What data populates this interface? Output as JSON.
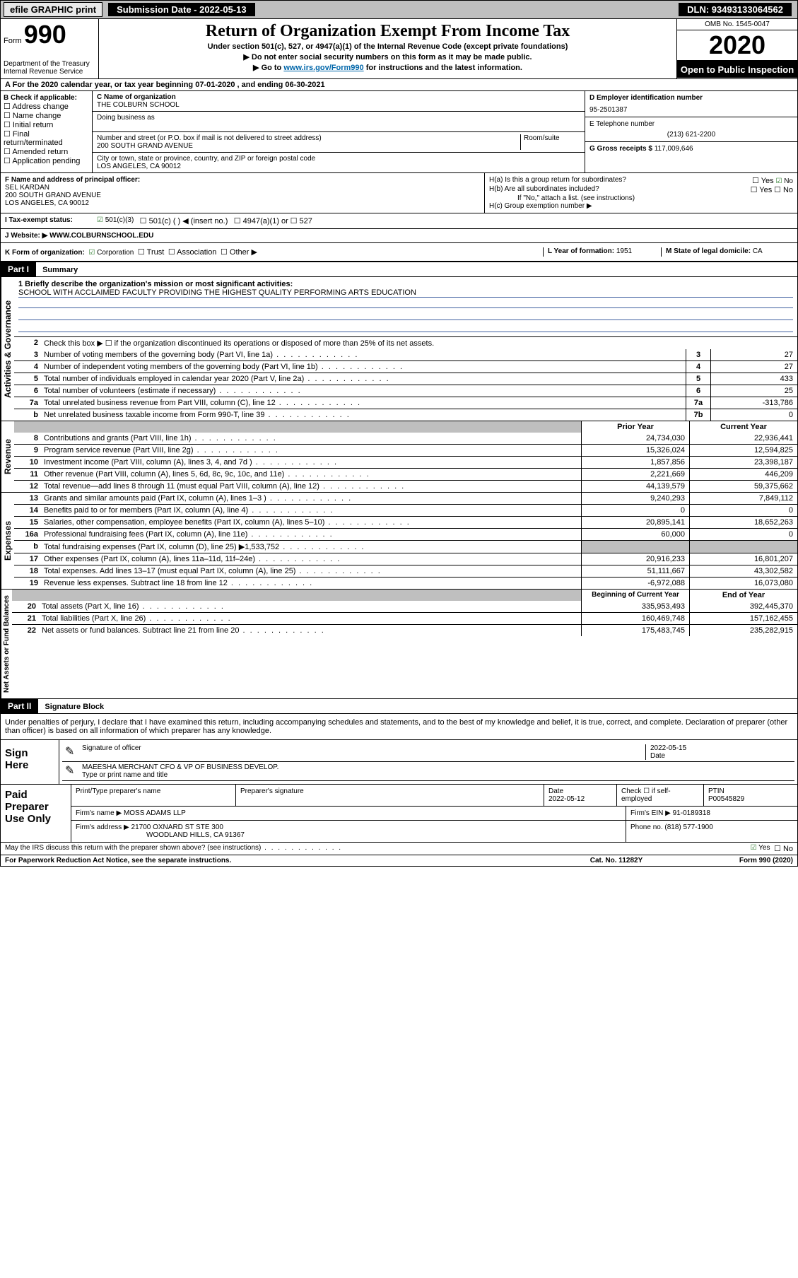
{
  "topbar": {
    "efile": "efile GRAPHIC print",
    "submission_label": "Submission Date - 2022-05-13",
    "dln": "DLN: 93493133064562"
  },
  "header": {
    "form_label": "Form",
    "form_number": "990",
    "dept": "Department of the Treasury",
    "irs": "Internal Revenue Service",
    "title": "Return of Organization Exempt From Income Tax",
    "subtitle": "Under section 501(c), 527, or 4947(a)(1) of the Internal Revenue Code (except private foundations)",
    "note1": "Do not enter social security numbers on this form as it may be made public.",
    "note2_prefix": "Go to ",
    "note2_link": "www.irs.gov/Form990",
    "note2_suffix": " for instructions and the latest information.",
    "omb": "OMB No. 1545-0047",
    "year": "2020",
    "open": "Open to Public Inspection"
  },
  "section_a": "For the 2020 calendar year, or tax year beginning 07-01-2020    , and ending 06-30-2021",
  "col_b": {
    "label": "B Check if applicable:",
    "items": [
      "Address change",
      "Name change",
      "Initial return",
      "Final return/terminated",
      "Amended return",
      "Application pending"
    ]
  },
  "col_c": {
    "name_label": "C Name of organization",
    "name": "THE COLBURN SCHOOL",
    "dba_label": "Doing business as",
    "addr_label": "Number and street (or P.O. box if mail is not delivered to street address)",
    "room_label": "Room/suite",
    "addr": "200 SOUTH GRAND AVENUE",
    "city_label": "City or town, state or province, country, and ZIP or foreign postal code",
    "city": "LOS ANGELES, CA  90012"
  },
  "col_d": {
    "ein_label": "D Employer identification number",
    "ein": "95-2501387",
    "phone_label": "E Telephone number",
    "phone": "(213) 621-2200",
    "gross_label": "G Gross receipts $",
    "gross": "117,009,646"
  },
  "row_f": {
    "label": "F  Name and address of principal officer:",
    "name": "SEL KARDAN",
    "addr1": "200 SOUTH GRAND AVENUE",
    "addr2": "LOS ANGELES, CA  90012",
    "ha_label": "H(a)  Is this a group return for subordinates?",
    "hb_label": "H(b)  Are all subordinates included?",
    "hb_note": "If \"No,\" attach a list. (see instructions)",
    "hc_label": "H(c)  Group exemption number ▶",
    "yes": "Yes",
    "no": "No"
  },
  "row_i": {
    "label": "I  Tax-exempt status:",
    "opt1": "501(c)(3)",
    "opt2": "501(c) (   ) ◀ (insert no.)",
    "opt3": "4947(a)(1) or",
    "opt4": "527"
  },
  "row_j": {
    "label": "J  Website: ▶",
    "value": "WWW.COLBURNSCHOOL.EDU"
  },
  "row_k": {
    "label": "K Form of organization:",
    "opts": [
      "Corporation",
      "Trust",
      "Association",
      "Other ▶"
    ],
    "l_label": "L Year of formation:",
    "l_val": "1951",
    "m_label": "M State of legal domicile:",
    "m_val": "CA"
  },
  "part1": {
    "hdr": "Part I",
    "title": "Summary",
    "l1_label": "1  Briefly describe the organization's mission or most significant activities:",
    "l1_text": "SCHOOL WITH ACCLAIMED FACULTY PROVIDING THE HIGHEST QUALITY PERFORMING ARTS EDUCATION",
    "l2": "Check this box ▶ ☐  if the organization discontinued its operations or disposed of more than 25% of its net assets.",
    "sections": {
      "ag": "Activities & Governance",
      "rev": "Revenue",
      "exp": "Expenses",
      "na": "Net Assets or Fund Balances"
    },
    "lines_single": [
      {
        "n": "3",
        "t": "Number of voting members of the governing body (Part VI, line 1a)",
        "b": "3",
        "v": "27"
      },
      {
        "n": "4",
        "t": "Number of independent voting members of the governing body (Part VI, line 1b)",
        "b": "4",
        "v": "27"
      },
      {
        "n": "5",
        "t": "Total number of individuals employed in calendar year 2020 (Part V, line 2a)",
        "b": "5",
        "v": "433"
      },
      {
        "n": "6",
        "t": "Total number of volunteers (estimate if necessary)",
        "b": "6",
        "v": "25"
      },
      {
        "n": "7a",
        "t": "Total unrelated business revenue from Part VIII, column (C), line 12",
        "b": "7a",
        "v": "-313,786"
      },
      {
        "n": "b",
        "t": "Net unrelated business taxable income from Form 990-T, line 39",
        "b": "7b",
        "v": "0"
      }
    ],
    "col_hdr_prior": "Prior Year",
    "col_hdr_curr": "Current Year",
    "lines_rev": [
      {
        "n": "8",
        "t": "Contributions and grants (Part VIII, line 1h)",
        "p": "24,734,030",
        "c": "22,936,441"
      },
      {
        "n": "9",
        "t": "Program service revenue (Part VIII, line 2g)",
        "p": "15,326,024",
        "c": "12,594,825"
      },
      {
        "n": "10",
        "t": "Investment income (Part VIII, column (A), lines 3, 4, and 7d )",
        "p": "1,857,856",
        "c": "23,398,187"
      },
      {
        "n": "11",
        "t": "Other revenue (Part VIII, column (A), lines 5, 6d, 8c, 9c, 10c, and 11e)",
        "p": "2,221,669",
        "c": "446,209"
      },
      {
        "n": "12",
        "t": "Total revenue—add lines 8 through 11 (must equal Part VIII, column (A), line 12)",
        "p": "44,139,579",
        "c": "59,375,662"
      }
    ],
    "lines_exp": [
      {
        "n": "13",
        "t": "Grants and similar amounts paid (Part IX, column (A), lines 1–3 )",
        "p": "9,240,293",
        "c": "7,849,112"
      },
      {
        "n": "14",
        "t": "Benefits paid to or for members (Part IX, column (A), line 4)",
        "p": "0",
        "c": "0"
      },
      {
        "n": "15",
        "t": "Salaries, other compensation, employee benefits (Part IX, column (A), lines 5–10)",
        "p": "20,895,141",
        "c": "18,652,263"
      },
      {
        "n": "16a",
        "t": "Professional fundraising fees (Part IX, column (A), line 11e)",
        "p": "60,000",
        "c": "0"
      },
      {
        "n": "b",
        "t": "Total fundraising expenses (Part IX, column (D), line 25) ▶1,533,752",
        "p": "GRAY",
        "c": "GRAY"
      },
      {
        "n": "17",
        "t": "Other expenses (Part IX, column (A), lines 11a–11d, 11f–24e)",
        "p": "20,916,233",
        "c": "16,801,207"
      },
      {
        "n": "18",
        "t": "Total expenses. Add lines 13–17 (must equal Part IX, column (A), line 25)",
        "p": "51,111,667",
        "c": "43,302,582"
      },
      {
        "n": "19",
        "t": "Revenue less expenses. Subtract line 18 from line 12",
        "p": "-6,972,088",
        "c": "16,073,080"
      }
    ],
    "col_hdr_begin": "Beginning of Current Year",
    "col_hdr_end": "End of Year",
    "lines_na": [
      {
        "n": "20",
        "t": "Total assets (Part X, line 16)",
        "p": "335,953,493",
        "c": "392,445,370"
      },
      {
        "n": "21",
        "t": "Total liabilities (Part X, line 26)",
        "p": "160,469,748",
        "c": "157,162,455"
      },
      {
        "n": "22",
        "t": "Net assets or fund balances. Subtract line 21 from line 20",
        "p": "175,483,745",
        "c": "235,282,915"
      }
    ]
  },
  "part2": {
    "hdr": "Part II",
    "title": "Signature Block",
    "decl": "Under penalties of perjury, I declare that I have examined this return, including accompanying schedules and statements, and to the best of my knowledge and belief, it is true, correct, and complete. Declaration of preparer (other than officer) is based on all information of which preparer has any knowledge.",
    "sign_here": "Sign Here",
    "sig_officer": "Signature of officer",
    "date_label": "Date",
    "sig_date": "2022-05-15",
    "officer_name": "MAEESHA MERCHANT  CFO & VP OF BUSINESS DEVELOP.",
    "type_label": "Type or print name and title",
    "paid": "Paid Preparer Use Only",
    "prep_name_label": "Print/Type preparer's name",
    "prep_sig_label": "Preparer's signature",
    "prep_date_label": "Date",
    "prep_date": "2022-05-12",
    "self_emp": "Check ☐ if self-employed",
    "ptin_label": "PTIN",
    "ptin": "P00545829",
    "firm_name_label": "Firm's name    ▶",
    "firm_name": "MOSS ADAMS LLP",
    "firm_ein_label": "Firm's EIN ▶",
    "firm_ein": "91-0189318",
    "firm_addr_label": "Firm's address ▶",
    "firm_addr1": "21700 OXNARD ST STE 300",
    "firm_addr2": "WOODLAND HILLS, CA  91367",
    "firm_phone_label": "Phone no.",
    "firm_phone": "(818) 577-1900",
    "discuss": "May the IRS discuss this return with the preparer shown above? (see instructions)",
    "yes": "Yes",
    "no": "No"
  },
  "footer": {
    "paperwork": "For Paperwork Reduction Act Notice, see the separate instructions.",
    "cat": "Cat. No. 11282Y",
    "form": "Form 990 (2020)"
  }
}
